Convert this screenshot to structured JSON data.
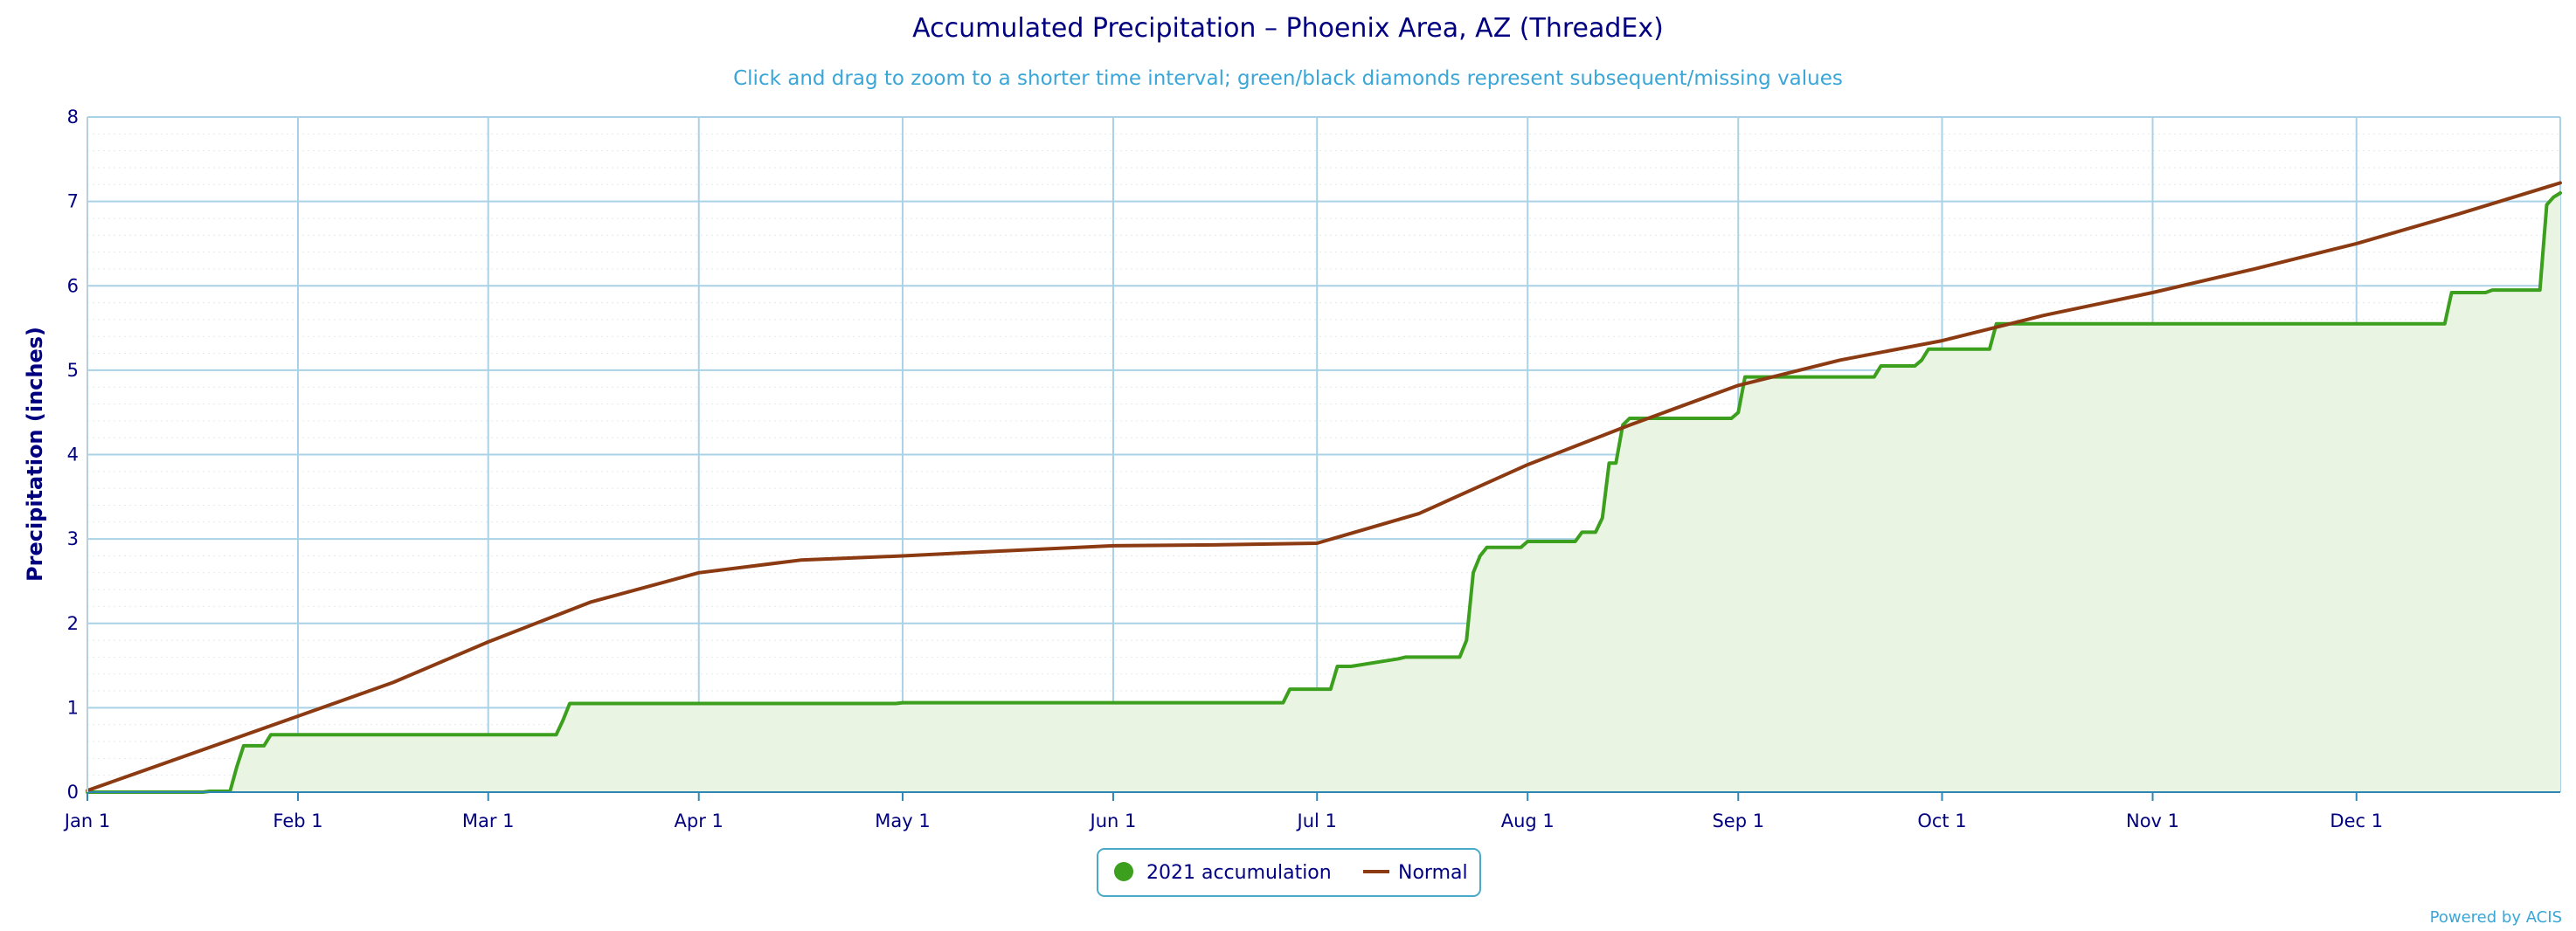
{
  "chart_data": {
    "type": "line",
    "title": "Accumulated Precipitation – Phoenix Area, AZ (ThreadEx)",
    "subtitle": "Click and drag to zoom to a shorter time interval; green/black diamonds represent subsequent/missing values",
    "ylabel": "Precipitation (inches)",
    "xlabel": "",
    "ylim": [
      0,
      8
    ],
    "yticks": [
      "0",
      "1",
      "2",
      "3",
      "4",
      "5",
      "6",
      "7",
      "8"
    ],
    "yticks_values": [
      0,
      1,
      2,
      3,
      4,
      5,
      6,
      7,
      8
    ],
    "xlim_day_of_year": [
      1,
      365
    ],
    "x_ticks": [
      {
        "label": "Jan 1",
        "day": 1
      },
      {
        "label": "Feb 1",
        "day": 32
      },
      {
        "label": "Mar 1",
        "day": 60
      },
      {
        "label": "Apr 1",
        "day": 91
      },
      {
        "label": "May 1",
        "day": 121
      },
      {
        "label": "Jun 1",
        "day": 152
      },
      {
        "label": "Jul 1",
        "day": 182
      },
      {
        "label": "Aug 1",
        "day": 213
      },
      {
        "label": "Sep 1",
        "day": 244
      },
      {
        "label": "Oct 1",
        "day": 274
      },
      {
        "label": "Nov 1",
        "day": 305
      },
      {
        "label": "Dec 1",
        "day": 335
      }
    ],
    "grid": true,
    "legend_position": "bottom-center",
    "series": [
      {
        "name": "2021 accumulation",
        "color": "#3c9f1d",
        "fill": "#eaf4e3",
        "step": true,
        "x_day_of_year": [
          1,
          18,
          19,
          20,
          22,
          23,
          24,
          25,
          27,
          28,
          29,
          70,
          71,
          72,
          73,
          120,
          121,
          177,
          178,
          184,
          185,
          187,
          194,
          195,
          203,
          204,
          205,
          206,
          207,
          208,
          212,
          213,
          220,
          221,
          223,
          224,
          225,
          226,
          227,
          228,
          229,
          243,
          244,
          245,
          246,
          264,
          265,
          270,
          271,
          272,
          273,
          281,
          282,
          348,
          349,
          354,
          355,
          362,
          363,
          364,
          365
        ],
        "values": [
          0.0,
          0.0,
          0.01,
          0.01,
          0.01,
          0.3,
          0.55,
          0.55,
          0.55,
          0.68,
          0.68,
          0.68,
          0.85,
          1.05,
          1.05,
          1.05,
          1.06,
          1.06,
          1.22,
          1.22,
          1.49,
          1.49,
          1.58,
          1.6,
          1.6,
          1.8,
          2.6,
          2.8,
          2.9,
          2.9,
          2.9,
          2.97,
          2.97,
          3.08,
          3.08,
          3.25,
          3.9,
          3.9,
          4.35,
          4.43,
          4.43,
          4.43,
          4.5,
          4.92,
          4.92,
          4.92,
          5.05,
          5.05,
          5.12,
          5.25,
          5.25,
          5.25,
          5.55,
          5.55,
          5.92,
          5.92,
          5.95,
          5.95,
          6.96,
          7.05,
          7.1
        ]
      },
      {
        "name": "Normal",
        "color": "#8b3a12",
        "step": false,
        "x_day_of_year": [
          1,
          32,
          46,
          60,
          75,
          91,
          106,
          121,
          136,
          152,
          167,
          182,
          197,
          213,
          228,
          244,
          259,
          274,
          289,
          305,
          320,
          335,
          350,
          365
        ],
        "values": [
          0.02,
          0.9,
          1.3,
          1.78,
          2.25,
          2.6,
          2.75,
          2.8,
          2.86,
          2.92,
          2.93,
          2.95,
          3.3,
          3.88,
          4.35,
          4.82,
          5.12,
          5.35,
          5.65,
          5.92,
          6.2,
          6.5,
          6.85,
          7.22
        ]
      }
    ]
  },
  "credit": "Powered by ACIS"
}
